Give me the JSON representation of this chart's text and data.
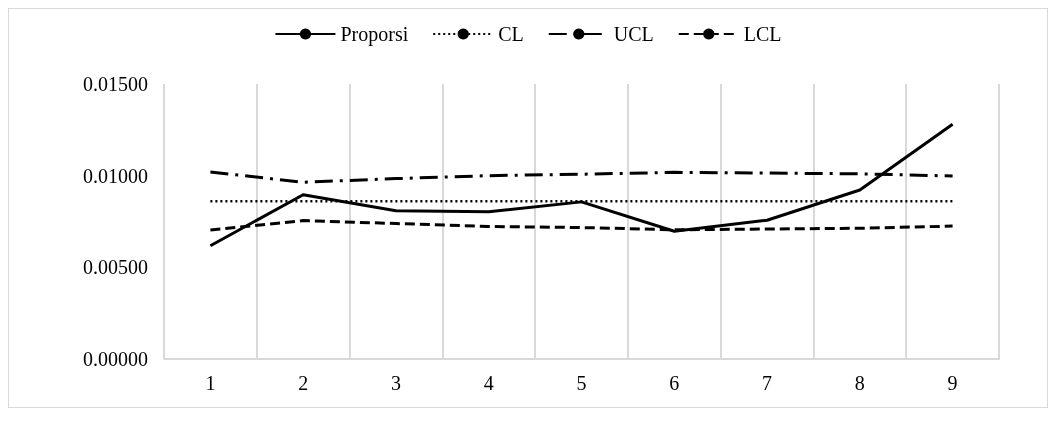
{
  "chart_data": {
    "type": "line",
    "categories": [
      "1",
      "2",
      "3",
      "4",
      "5",
      "6",
      "7",
      "8",
      "9"
    ],
    "series": [
      {
        "name": "Proporsi",
        "color": "#000000",
        "line_style": "solid",
        "values": [
          0.00618,
          0.00896,
          0.00809,
          0.00803,
          0.00857,
          0.00697,
          0.00757,
          0.00922,
          0.0128
        ]
      },
      {
        "name": "CL",
        "color": "#000000",
        "line_style": "dotted",
        "values": [
          0.0086,
          0.0086,
          0.0086,
          0.0086,
          0.0086,
          0.0086,
          0.0086,
          0.0086,
          0.0086
        ]
      },
      {
        "name": "UCL",
        "color": "#000000",
        "line_style": "dashdot",
        "values": [
          0.0102,
          0.00964,
          0.00984,
          0.01,
          0.01008,
          0.01018,
          0.01014,
          0.0101,
          0.00998
        ]
      },
      {
        "name": "LCL",
        "color": "#000000",
        "line_style": "dashed",
        "values": [
          0.00703,
          0.00755,
          0.00739,
          0.00723,
          0.00717,
          0.00705,
          0.00709,
          0.00713,
          0.00725
        ]
      }
    ],
    "ylim": [
      0,
      0.015
    ],
    "yticks": [
      {
        "value": 0,
        "label": "0.00000"
      },
      {
        "value": 0.005,
        "label": "0.00500"
      },
      {
        "value": 0.01,
        "label": "0.01000"
      },
      {
        "value": 0.015,
        "label": "0.01500"
      }
    ],
    "grid": "x",
    "legend": "top",
    "marker": "none"
  }
}
